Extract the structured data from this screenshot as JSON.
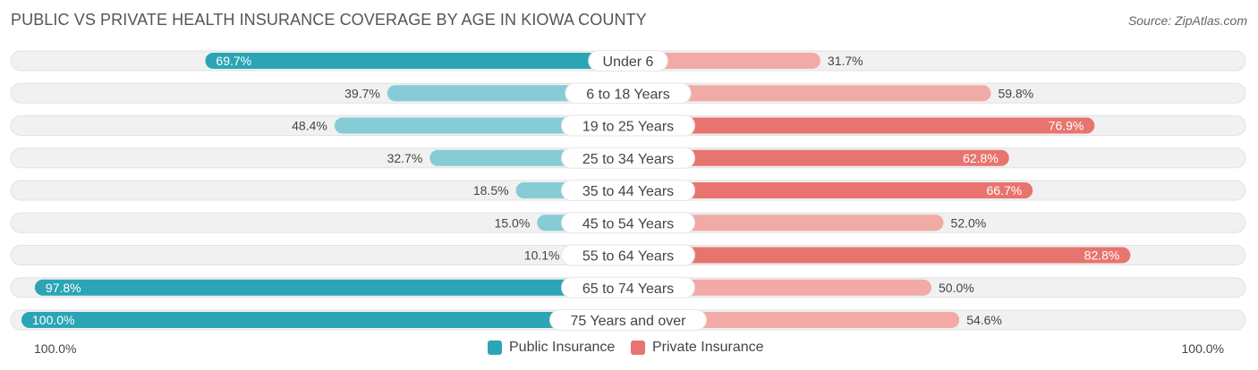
{
  "header": {
    "title": "PUBLIC VS PRIVATE HEALTH INSURANCE COVERAGE BY AGE IN KIOWA COUNTY",
    "source": "Source: ZipAtlas.com"
  },
  "colors": {
    "public_dark": "#2ba5b5",
    "public_light": "#86ccd6",
    "private_dark": "#e8746f",
    "private_light": "#f2aaa6",
    "track": "#f1f1f1"
  },
  "axis": {
    "left_label": "100.0%",
    "right_label": "100.0%"
  },
  "legend": {
    "public": "Public Insurance",
    "private": "Private Insurance"
  },
  "chart_data": {
    "type": "bar",
    "orientation": "horizontal-diverging",
    "categories": [
      "Under 6",
      "6 to 18 Years",
      "19 to 25 Years",
      "25 to 34 Years",
      "35 to 44 Years",
      "45 to 54 Years",
      "55 to 64 Years",
      "65 to 74 Years",
      "75 Years and over"
    ],
    "series": [
      {
        "name": "Public Insurance",
        "values": [
          69.7,
          39.7,
          48.4,
          32.7,
          18.5,
          15.0,
          10.1,
          97.8,
          100.0
        ],
        "labels": [
          "69.7%",
          "39.7%",
          "48.4%",
          "32.7%",
          "18.5%",
          "15.0%",
          "10.1%",
          "97.8%",
          "100.0%"
        ]
      },
      {
        "name": "Private Insurance",
        "values": [
          31.7,
          59.8,
          76.9,
          62.8,
          66.7,
          52.0,
          82.8,
          50.0,
          54.6
        ],
        "labels": [
          "31.7%",
          "59.8%",
          "76.9%",
          "62.8%",
          "66.7%",
          "52.0%",
          "82.8%",
          "50.0%",
          "54.6%"
        ]
      }
    ],
    "xlim": [
      0,
      100
    ],
    "legend_position": "bottom-center"
  }
}
